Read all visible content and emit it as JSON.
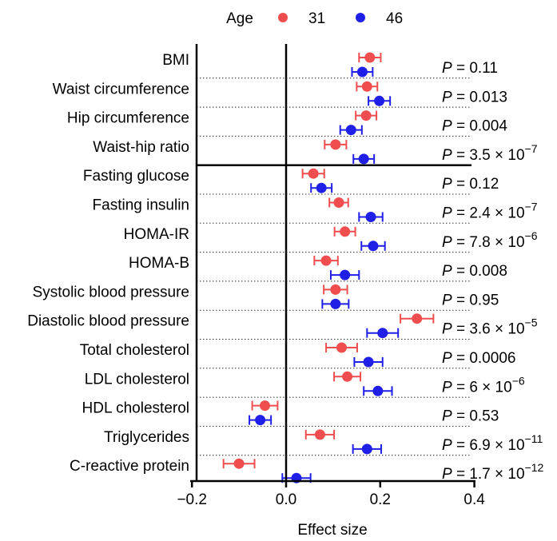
{
  "chart_data": {
    "type": "scatter",
    "subtype": "forest-plot",
    "title": "",
    "xlabel": "Effect size",
    "ylabel": "",
    "xlim": [
      -0.2,
      0.4
    ],
    "xticks": [
      "−0.2",
      "0.0",
      "0.2",
      "0.4"
    ],
    "xtick_values": [
      -0.2,
      0.0,
      0.2,
      0.4
    ],
    "grid": false,
    "legend": {
      "title": "Age",
      "placement": "top",
      "entries": [
        {
          "name": "31",
          "color": "#f04e4e"
        },
        {
          "name": "46",
          "color": "#1f1fe8"
        }
      ]
    },
    "categories": [
      "BMI",
      "Waist circumference",
      "Hip circumference",
      "Waist-hip ratio",
      "Fasting glucose",
      "Fasting insulin",
      "HOMA-IR",
      "HOMA-B",
      "Systolic blood pressure",
      "Diastolic blood pressure",
      "Total cholesterol",
      "LDL cholesterol",
      "HDL cholesterol",
      "Triglycerides",
      "C-reactive protein"
    ],
    "series": [
      {
        "name": "31",
        "color": "#f04e4e",
        "values": [
          0.178,
          0.172,
          0.17,
          0.105,
          0.058,
          0.112,
          0.125,
          0.085,
          0.105,
          0.278,
          0.118,
          0.13,
          -0.045,
          0.072,
          -0.1
        ],
        "ci_low": [
          0.155,
          0.15,
          0.148,
          0.082,
          0.035,
          0.092,
          0.103,
          0.06,
          0.08,
          0.243,
          0.085,
          0.102,
          -0.072,
          0.042,
          -0.133
        ],
        "ci_high": [
          0.201,
          0.194,
          0.192,
          0.128,
          0.081,
          0.132,
          0.147,
          0.11,
          0.13,
          0.313,
          0.151,
          0.158,
          -0.018,
          0.102,
          -0.067
        ]
      },
      {
        "name": "46",
        "color": "#1f1fe8",
        "values": [
          0.162,
          0.198,
          0.138,
          0.165,
          0.075,
          0.18,
          0.185,
          0.125,
          0.105,
          0.205,
          0.175,
          0.195,
          -0.055,
          0.172,
          0.022
        ],
        "ci_low": [
          0.14,
          0.175,
          0.115,
          0.143,
          0.053,
          0.155,
          0.16,
          0.095,
          0.077,
          0.172,
          0.145,
          0.165,
          -0.078,
          0.142,
          -0.008
        ],
        "ci_high": [
          0.184,
          0.221,
          0.161,
          0.187,
          0.097,
          0.205,
          0.21,
          0.155,
          0.133,
          0.238,
          0.205,
          0.225,
          -0.032,
          0.202,
          0.052
        ]
      }
    ],
    "p_values": [
      {
        "base": "= 0.11",
        "exp": ""
      },
      {
        "base": "= 0.013",
        "exp": ""
      },
      {
        "base": "= 0.004",
        "exp": ""
      },
      {
        "base": "= 3.5 × 10",
        "exp": "−7"
      },
      {
        "base": "= 0.12",
        "exp": ""
      },
      {
        "base": "= 2.4 × 10",
        "exp": "−7"
      },
      {
        "base": "= 7.8 × 10",
        "exp": "−6"
      },
      {
        "base": "= 0.008",
        "exp": ""
      },
      {
        "base": "= 0.95",
        "exp": ""
      },
      {
        "base": "= 3.6 × 10",
        "exp": "−5"
      },
      {
        "base": "= 0.0006",
        "exp": ""
      },
      {
        "base": "= 6 × 10",
        "exp": "−6"
      },
      {
        "base": "= 0.53",
        "exp": ""
      },
      {
        "base": "= 6.9 × 10",
        "exp": "−11"
      },
      {
        "base": "= 1.7 × 10",
        "exp": "−12"
      }
    ],
    "p_symbol": "P",
    "section_divider_after": "Waist-hip ratio"
  }
}
